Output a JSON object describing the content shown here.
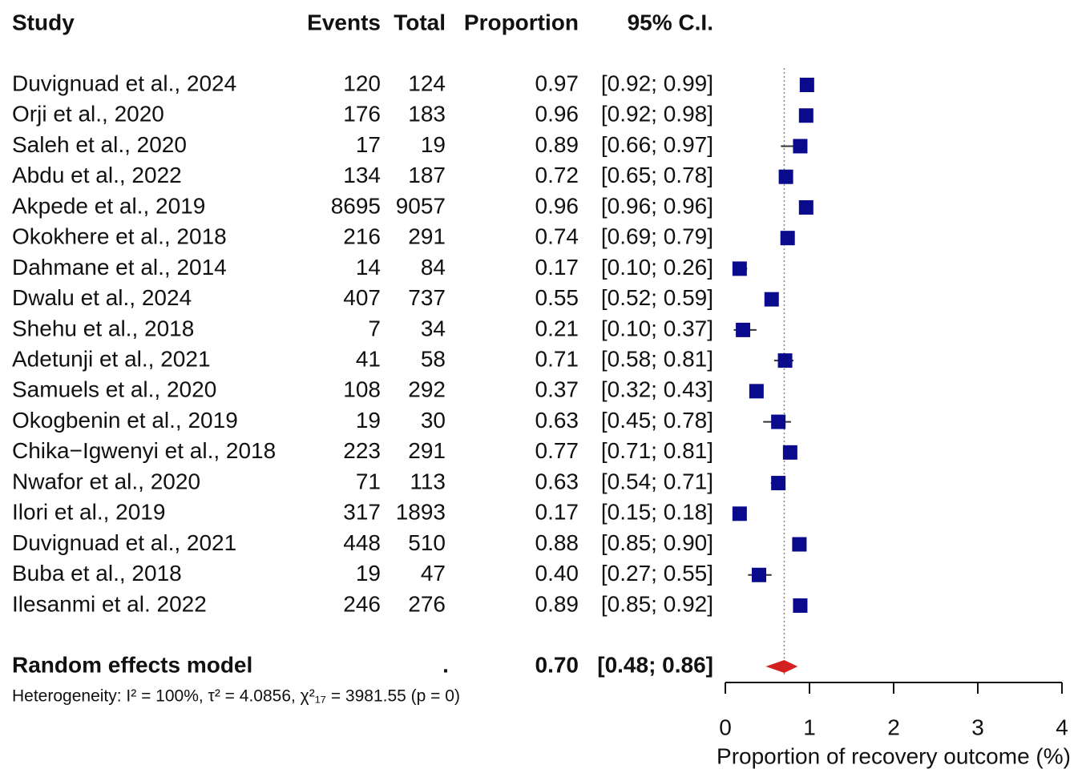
{
  "chart_data": {
    "type": "forest",
    "columns": [
      "Study",
      "Events",
      "Total",
      "Proportion",
      "95% C.I."
    ],
    "categories": [
      "Duvignuad et al., 2024",
      "Orji et al., 2020",
      "Saleh et al., 2020",
      "Abdu et al., 2022",
      "Akpede et al., 2019",
      "Okokhere et al., 2018",
      "Dahmane et al., 2014",
      "Dwalu et al., 2024",
      "Shehu et al., 2018",
      "Adetunji et al., 2021",
      "Samuels et al., 2020",
      "Okogbenin et al., 2019",
      "Chika−Igwenyi et al., 2018",
      "Nwafor et al., 2020",
      "Ilori et al., 2019",
      "Duvignuad et al., 2021",
      "Buba et al., 2018",
      "Ilesanmi et al. 2022"
    ],
    "events": [
      120,
      176,
      17,
      134,
      8695,
      216,
      14,
      407,
      7,
      41,
      108,
      19,
      223,
      71,
      317,
      448,
      19,
      246
    ],
    "totals": [
      124,
      183,
      19,
      187,
      9057,
      291,
      84,
      737,
      34,
      58,
      292,
      30,
      291,
      113,
      1893,
      510,
      47,
      276
    ],
    "values": [
      0.97,
      0.96,
      0.89,
      0.72,
      0.96,
      0.74,
      0.17,
      0.55,
      0.21,
      0.71,
      0.37,
      0.63,
      0.77,
      0.63,
      0.17,
      0.88,
      0.4,
      0.89
    ],
    "value_labels": [
      "0.97",
      "0.96",
      "0.89",
      "0.72",
      "0.96",
      "0.74",
      "0.17",
      "0.55",
      "0.21",
      "0.71",
      "0.37",
      "0.63",
      "0.77",
      "0.63",
      "0.17",
      "0.88",
      "0.40",
      "0.89"
    ],
    "ci_lower": [
      0.92,
      0.92,
      0.66,
      0.65,
      0.96,
      0.69,
      0.1,
      0.52,
      0.1,
      0.58,
      0.32,
      0.45,
      0.71,
      0.54,
      0.15,
      0.85,
      0.27,
      0.85
    ],
    "ci_upper": [
      0.99,
      0.98,
      0.97,
      0.78,
      0.96,
      0.79,
      0.26,
      0.59,
      0.37,
      0.81,
      0.43,
      0.78,
      0.81,
      0.71,
      0.18,
      0.9,
      0.55,
      0.92
    ],
    "ci_labels": [
      "[0.92; 0.99]",
      "[0.92; 0.98]",
      "[0.66; 0.97]",
      "[0.65; 0.78]",
      "[0.96; 0.96]",
      "[0.69; 0.79]",
      "[0.10; 0.26]",
      "[0.52; 0.59]",
      "[0.10; 0.37]",
      "[0.58; 0.81]",
      "[0.32; 0.43]",
      "[0.45; 0.78]",
      "[0.71; 0.81]",
      "[0.54; 0.71]",
      "[0.15; 0.18]",
      "[0.85; 0.90]",
      "[0.27; 0.55]",
      "[0.85; 0.92]"
    ],
    "color": "#0a0a8c",
    "summary": {
      "label": "Random effects model",
      "events": ".",
      "value": 0.7,
      "value_label": "0.70",
      "ci_lower": 0.48,
      "ci_upper": 0.86,
      "ci_label": "[0.48; 0.86]",
      "color": "#d42020"
    },
    "heterogeneity": "Heterogeneity: I² = 100%, τ² = 4.0856, χ²₁₇ = 3981.55 (p = 0)",
    "xlim": [
      0,
      4
    ],
    "xticks": [
      0,
      1,
      2,
      3,
      4
    ],
    "xlabel": "Proportion of recovery outcome (%)"
  }
}
